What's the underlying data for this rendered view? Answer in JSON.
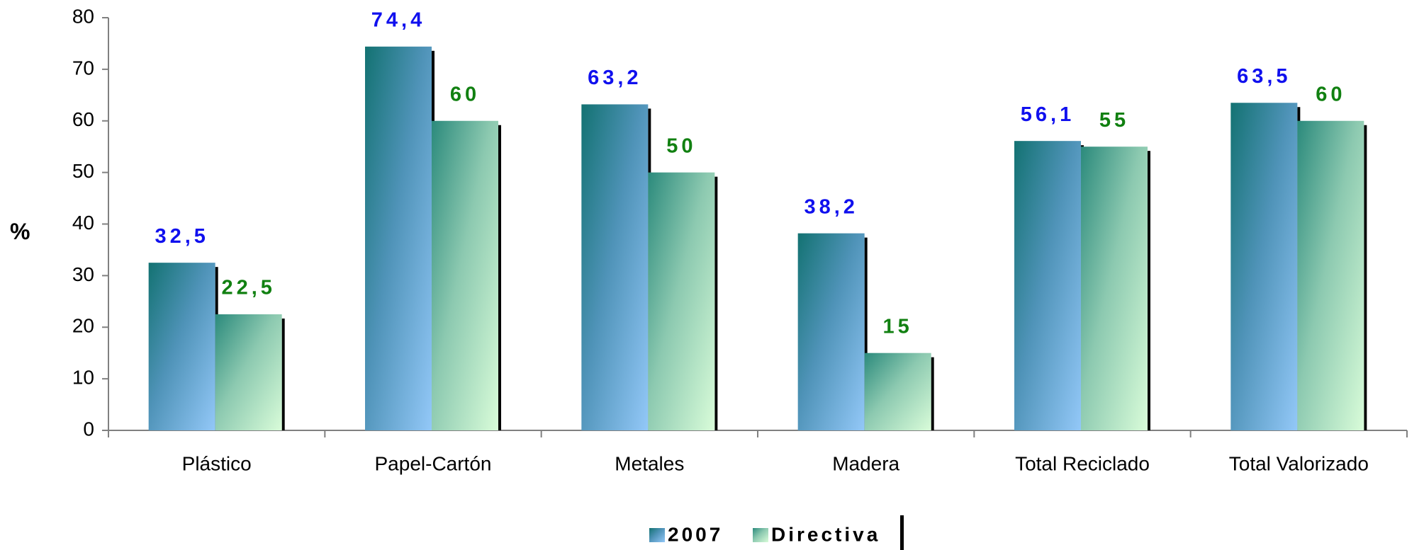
{
  "chart_data": {
    "type": "bar",
    "categories": [
      "Plástico",
      "Papel-Cartón",
      "Metales",
      "Madera",
      "Total Reciclado",
      "Total Valorizado"
    ],
    "series": [
      {
        "name": "2007",
        "values": [
          32.5,
          74.4,
          63.2,
          38.2,
          56.1,
          63.5
        ],
        "labels": [
          "32,5",
          "74,4",
          "63,2",
          "38,2",
          "56,1",
          "63,5"
        ],
        "label_color": "#1010ee"
      },
      {
        "name": "Directiva",
        "values": [
          22.5,
          60,
          50,
          15,
          55,
          60
        ],
        "labels": [
          "22,5",
          "60",
          "50",
          "15",
          "55",
          "60"
        ],
        "label_color": "#118011"
      }
    ],
    "title": "",
    "xlabel": "",
    "ylabel": "%",
    "ylim": [
      0,
      80
    ],
    "yticks": [
      "0",
      "10",
      "20",
      "30",
      "40",
      "50",
      "60",
      "70",
      "80"
    ],
    "grid": false,
    "legend_position": "bottom"
  },
  "colors": {
    "series_2007": [
      "#1a7a7a",
      "#8cc2f2"
    ],
    "series_directiva": [
      "#2d8a78",
      "#d6fbd6"
    ],
    "shadow": "#000000",
    "axis": "#808080"
  }
}
